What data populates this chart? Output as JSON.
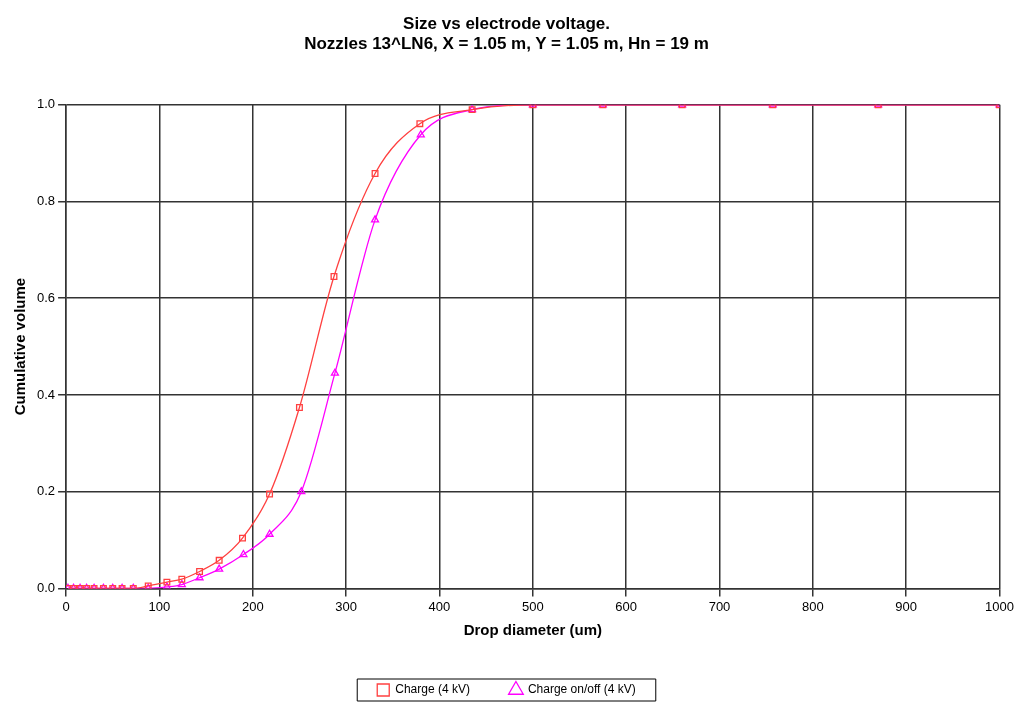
{
  "chart_data": {
    "type": "line",
    "title": [
      "Size vs electrode voltage.",
      "Nozzles 13^LN6, X = 1.05 m, Y = 1.05 m, Hn = 19 m"
    ],
    "xlabel": "Drop diameter (um)",
    "ylabel": "Cumulative volume",
    "series": [
      {
        "name": "Charge (4 kV)",
        "color": "#ff4040",
        "marker": "square",
        "x": [
          2,
          8,
          15,
          22,
          30,
          40,
          50,
          60,
          72,
          88,
          108,
          124,
          143,
          164,
          189,
          218,
          250,
          287,
          331,
          379,
          435,
          500,
          575,
          660,
          757,
          870,
          1000
        ],
        "values": [
          0,
          0,
          0,
          0,
          0,
          0,
          0,
          0,
          0,
          0.005,
          0.013,
          0.019,
          0.035,
          0.058,
          0.104,
          0.195,
          0.374,
          0.645,
          0.858,
          0.961,
          0.99,
          1,
          1,
          1,
          1,
          1,
          1
        ]
      },
      {
        "name": "Charge on/off (4 kV)",
        "color": "#ff00ff",
        "marker": "triangle",
        "x": [
          2,
          8,
          15,
          22,
          30,
          40,
          50,
          60,
          72,
          88,
          108,
          124,
          143,
          164,
          190,
          218,
          252,
          288,
          331,
          380,
          435,
          500,
          575,
          660,
          757,
          870,
          1000
        ],
        "values": [
          0,
          0,
          0,
          0,
          0,
          0,
          0,
          0,
          0,
          0,
          0.003,
          0.008,
          0.022,
          0.04,
          0.07,
          0.112,
          0.2,
          0.445,
          0.762,
          0.938,
          0.99,
          1,
          1,
          1,
          1,
          1,
          1
        ]
      }
    ],
    "xlim": [
      0,
      1000
    ],
    "xticks": [
      0,
      100,
      200,
      300,
      400,
      500,
      600,
      700,
      800,
      900,
      1000
    ],
    "ylim": [
      0,
      1
    ],
    "yticks": [
      {
        "value": 0,
        "label": "0.0"
      },
      {
        "value": 0.2,
        "label": "0.2"
      },
      {
        "value": 0.4,
        "label": "0.4"
      },
      {
        "value": 0.6,
        "label": "0.6"
      },
      {
        "value": 0.8,
        "label": "0.8"
      },
      {
        "value": 1,
        "label": "1.0"
      }
    ],
    "grid": true,
    "legend": "bottom",
    "line_style": "solid"
  }
}
